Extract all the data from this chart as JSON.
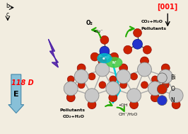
{
  "bg_color": "#f2ede0",
  "legend_items": [
    {
      "label": "Bi",
      "color": "#c8c8c8"
    },
    {
      "label": "O",
      "color": "#cc2200"
    },
    {
      "label": "N",
      "color": "#2233cc"
    }
  ],
  "bi_color": "#c8c8c8",
  "o_color": "#cc2200",
  "n_color": "#2233cc",
  "bond_color": "#aaaaaa",
  "cyan_color": "#00ccdd",
  "lightning_color": "#6644bb",
  "green_arrow_color": "#22aa00",
  "e_arrow_color": "#88c0d8",
  "axis_001": "[001]",
  "label_118D": "118 D",
  "label_E": "E",
  "label_b": "b",
  "label_c": "c"
}
